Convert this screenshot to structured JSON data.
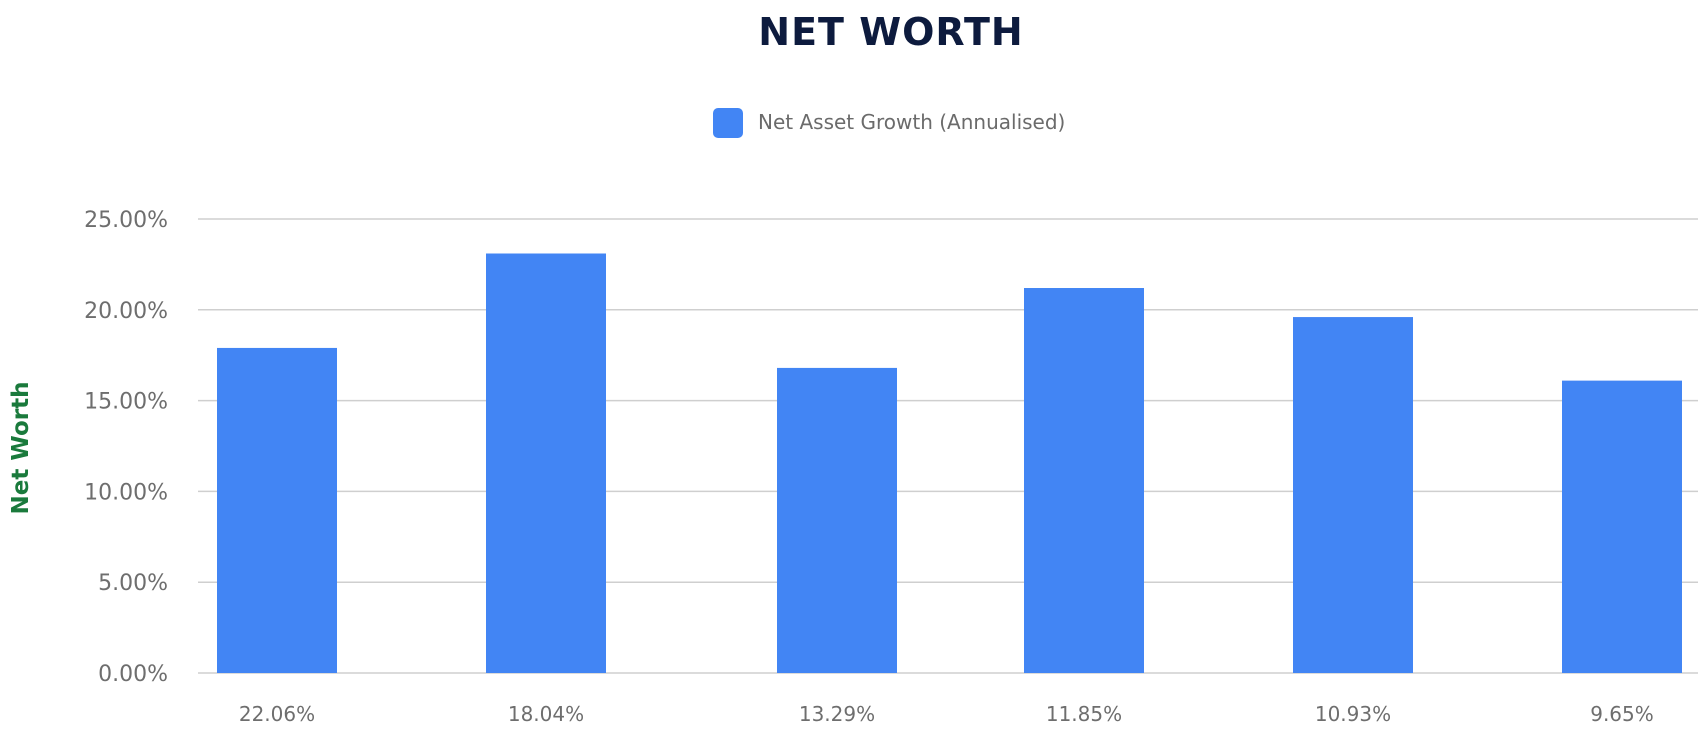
{
  "chart_data": {
    "type": "bar",
    "title": "NET WORTH",
    "xlabel": "",
    "ylabel": "Net Worth",
    "categories": [
      "22.06%",
      "18.04%",
      "13.29%",
      "11.85%",
      "10.93%",
      "9.65%"
    ],
    "series": [
      {
        "name": "Net Asset Growth (Annualised)",
        "values": [
          17.9,
          23.1,
          16.8,
          21.2,
          19.6,
          16.1
        ],
        "color": "#4285f4"
      }
    ],
    "ylim": [
      0,
      25
    ],
    "yticks": [
      "0.00%",
      "5.00%",
      "10.00%",
      "15.00%",
      "20.00%",
      "25.00%"
    ],
    "grid": true,
    "legend_position": "top-center"
  }
}
